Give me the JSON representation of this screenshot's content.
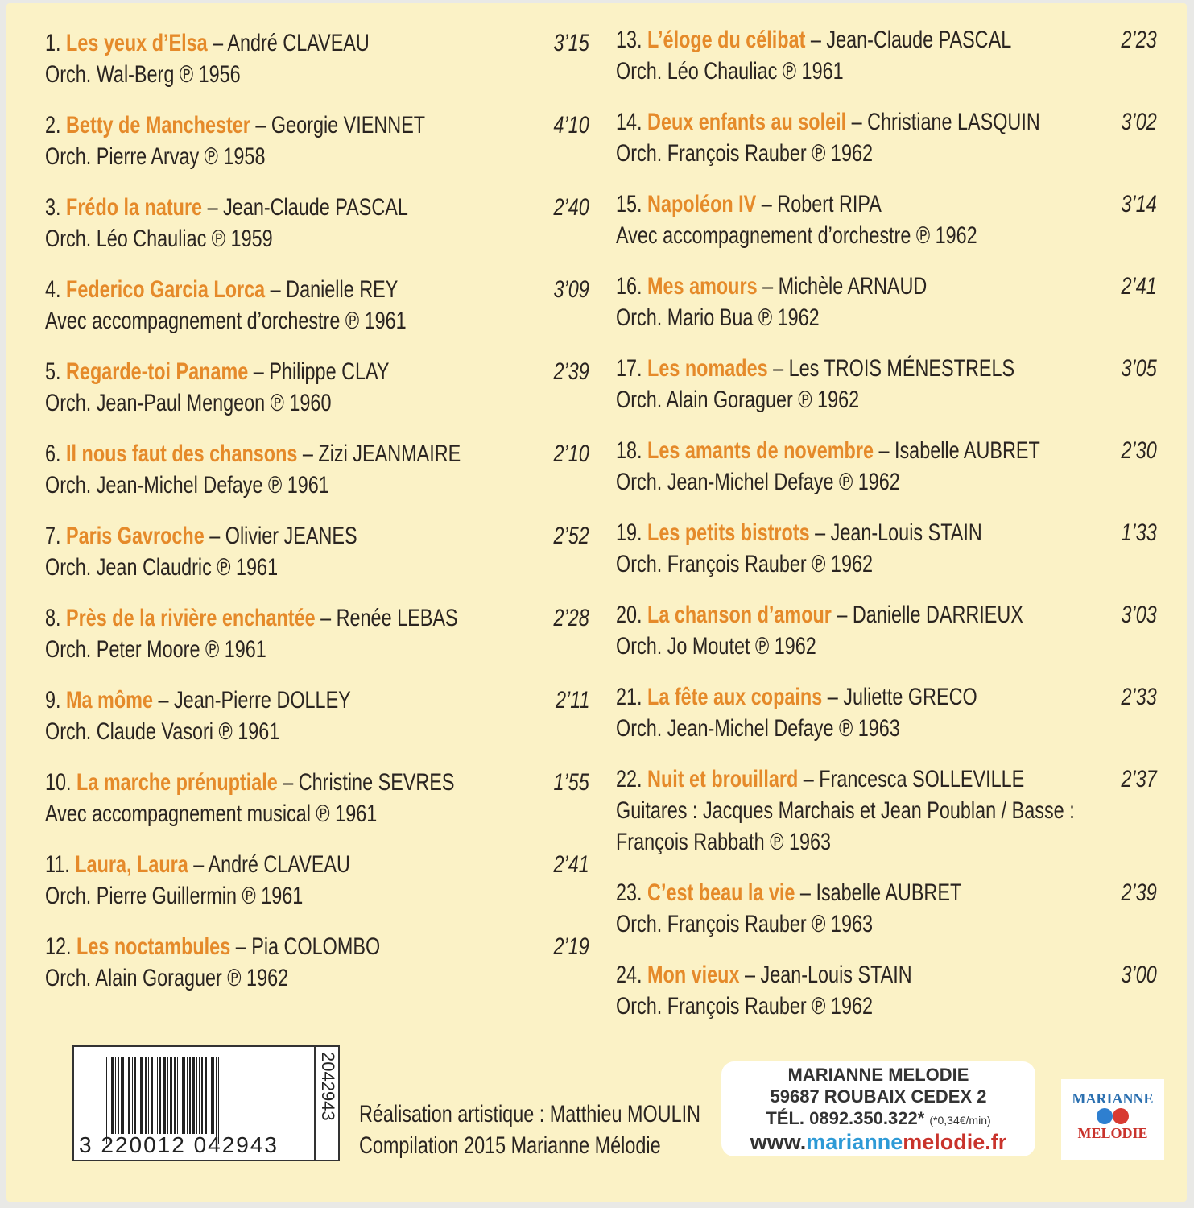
{
  "tracks_left": [
    {
      "num": "1.",
      "title": "Les yeux d’Elsa",
      "artist": "André CLAVEAU",
      "time": "3’15",
      "credit": "Orch. Wal-Berg ℗ 1956"
    },
    {
      "num": "2.",
      "title": "Betty de Manchester",
      "artist": "Georgie VIENNET",
      "time": "4’10",
      "credit": "Orch. Pierre Arvay ℗ 1958"
    },
    {
      "num": "3.",
      "title": "Frédo la nature",
      "artist": "Jean-Claude PASCAL",
      "time": "2’40",
      "credit": "Orch. Léo Chauliac ℗ 1959"
    },
    {
      "num": "4.",
      "title": "Federico Garcia Lorca",
      "artist": "Danielle REY",
      "time": "3’09",
      "credit": "Avec accompagnement d’orchestre ℗ 1961"
    },
    {
      "num": "5.",
      "title": "Regarde-toi Paname",
      "artist": "Philippe CLAY",
      "time": "2’39",
      "credit": "Orch. Jean-Paul Mengeon ℗ 1960"
    },
    {
      "num": "6.",
      "title": "Il nous faut des chansons",
      "artist": "Zizi JEANMAIRE",
      "time": "2’10",
      "credit": "Orch. Jean-Michel Defaye ℗ 1961"
    },
    {
      "num": "7.",
      "title": "Paris Gavroche",
      "artist": "Olivier JEANES",
      "time": "2’52",
      "credit": "Orch. Jean Claudric ℗ 1961"
    },
    {
      "num": "8.",
      "title": "Près de la rivière enchantée",
      "artist": "Renée LEBAS",
      "time": "2’28",
      "credit": "Orch. Peter Moore ℗ 1961"
    },
    {
      "num": "9.",
      "title": "Ma môme",
      "artist": "Jean-Pierre DOLLEY",
      "time": "2’11",
      "credit": "Orch. Claude Vasori ℗ 1961"
    },
    {
      "num": "10.",
      "title": "La marche prénuptiale",
      "artist": "Christine SEVRES",
      "time": "1’55",
      "credit": "Avec accompagnement musical ℗ 1961"
    },
    {
      "num": "11.",
      "title": "Laura, Laura",
      "artist": "André CLAVEAU",
      "time": "2’41",
      "credit": "Orch. Pierre Guillermin ℗ 1961"
    },
    {
      "num": "12.",
      "title": "Les noctambules",
      "artist": "Pia COLOMBO",
      "time": "2’19",
      "credit": "Orch. Alain Goraguer ℗ 1962"
    }
  ],
  "tracks_right": [
    {
      "num": "13.",
      "title": "L’éloge du célibat",
      "artist": "Jean-Claude PASCAL",
      "time": "2’23",
      "credit": "Orch. Léo Chauliac ℗ 1961"
    },
    {
      "num": "14.",
      "title": "Deux enfants au soleil",
      "artist": "Christiane LASQUIN",
      "time": "3’02",
      "credit": "Orch. François Rauber ℗ 1962"
    },
    {
      "num": "15.",
      "title": "Napoléon IV",
      "artist": "Robert RIPA",
      "time": "3’14",
      "credit": "Avec accompagnement d’orchestre ℗ 1962"
    },
    {
      "num": "16.",
      "title": "Mes amours",
      "artist": "Michèle ARNAUD",
      "time": "2’41",
      "credit": "Orch. Mario Bua ℗ 1962"
    },
    {
      "num": "17.",
      "title": "Les nomades",
      "artist": "Les TROIS MÉNESTRELS",
      "time": "3’05",
      "credit": "Orch. Alain Goraguer ℗ 1962"
    },
    {
      "num": "18.",
      "title": "Les amants de novembre",
      "artist": "Isabelle AUBRET",
      "time": "2’30",
      "credit": "Orch. Jean-Michel Defaye ℗ 1962"
    },
    {
      "num": "19.",
      "title": "Les petits bistrots",
      "artist": "Jean-Louis STAIN",
      "time": "1’33",
      "credit": "Orch. François Rauber ℗ 1962"
    },
    {
      "num": "20.",
      "title": "La chanson d’amour",
      "artist": "Danielle DARRIEUX",
      "time": "3’03",
      "credit": "Orch. Jo Moutet ℗ 1962"
    },
    {
      "num": "21.",
      "title": "La fête aux copains",
      "artist": "Juliette GRECO",
      "time": "2’33",
      "credit": "Orch. Jean-Michel Defaye ℗ 1963"
    },
    {
      "num": "22.",
      "title": "Nuit et brouillard",
      "artist": "Francesca SOLLEVILLE",
      "time": "2’37",
      "credit": "Guitares : Jacques Marchais et Jean Poublan / Basse : François Rabbath ℗ 1963"
    },
    {
      "num": "23.",
      "title": "C’est beau la vie",
      "artist": "Isabelle AUBRET",
      "time": "2’39",
      "credit": "Orch. François Rauber ℗ 1963"
    },
    {
      "num": "24.",
      "title": "Mon vieux",
      "artist": "Jean-Louis STAIN",
      "time": "3’00",
      "credit": "Orch. François Rauber ℗ 1962"
    }
  ],
  "barcode": {
    "number": "3  220012  042943",
    "side_code": "2042943"
  },
  "credits": {
    "line1": "Réalisation artistique : Matthieu MOULIN",
    "line2": "Compilation 2015 Marianne Mélodie"
  },
  "address": {
    "name": "MARIANNE MELODIE",
    "city": "59687 ROUBAIX CEDEX 2",
    "phone": "TÉL. 0892.350.322*",
    "phone_note": "(*0,34€/min)",
    "web_prefix": "www.",
    "web_blue": "marianne",
    "web_red": "melodie.fr"
  },
  "logo": {
    "top": "MARIANNE",
    "bottom": "MELODIE"
  },
  "colors": {
    "title": "#e58a2a",
    "background": "#fbf2c6",
    "blue": "#2e9ad6",
    "red": "#c9332c"
  }
}
